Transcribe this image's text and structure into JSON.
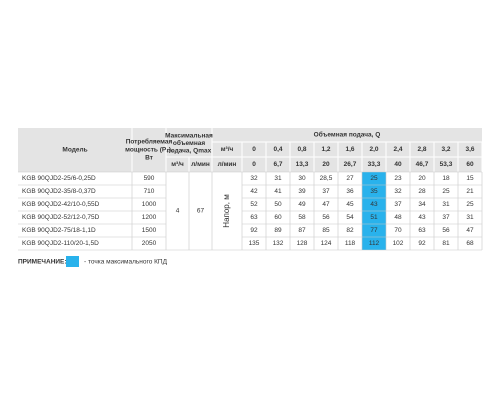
{
  "table": {
    "header": {
      "model": "Модель",
      "power": [
        "Потребляемая",
        "мощность (P₁),",
        "Вт"
      ],
      "qmax": [
        "Максимальная",
        "объемная",
        "подача, Qmax"
      ],
      "unit_m3h": "м³/ч",
      "unit_lmin": "л/мин",
      "flow_title": "Объемная подача, Q",
      "head": "Напор, м",
      "flow_m3h": [
        "0",
        "0,4",
        "0,8",
        "1,2",
        "1,6",
        "2,0",
        "2,4",
        "2,8",
        "3,2",
        "3,6"
      ],
      "flow_lmin": [
        "0",
        "6,7",
        "13,3",
        "20",
        "26,7",
        "33,3",
        "40",
        "46,7",
        "53,3",
        "60"
      ]
    },
    "qmax_m3h": "4",
    "qmax_lmin": "67",
    "rows": [
      {
        "model": "KGB 90QJD2-25/6-0,25D",
        "power": "590",
        "heads": [
          "32",
          "31",
          "30",
          "28,5",
          "27",
          "25",
          "23",
          "20",
          "18",
          "15"
        ]
      },
      {
        "model": "KGB 90QJD2-35/8-0,37D",
        "power": "710",
        "heads": [
          "42",
          "41",
          "39",
          "37",
          "36",
          "35",
          "32",
          "28",
          "25",
          "21"
        ]
      },
      {
        "model": "KGB 90QJD2-42/10-0,55D",
        "power": "1000",
        "heads": [
          "52",
          "50",
          "49",
          "47",
          "45",
          "43",
          "37",
          "34",
          "31",
          "25"
        ]
      },
      {
        "model": "KGB 90QJD2-52/12-0,75D",
        "power": "1200",
        "heads": [
          "63",
          "60",
          "58",
          "56",
          "54",
          "51",
          "48",
          "43",
          "37",
          "31"
        ]
      },
      {
        "model": "KGB 90QJD2-75/18-1,1D",
        "power": "1500",
        "heads": [
          "92",
          "89",
          "87",
          "85",
          "82",
          "77",
          "70",
          "63",
          "56",
          "47"
        ]
      },
      {
        "model": "KGB 90QJD2-110/20-1,5D",
        "power": "2050",
        "heads": [
          "135",
          "132",
          "128",
          "124",
          "118",
          "112",
          "102",
          "92",
          "81",
          "68"
        ]
      }
    ]
  },
  "note": {
    "label": "ПРИМЕЧАНИЕ:",
    "text": "- точка максимального КПД"
  }
}
